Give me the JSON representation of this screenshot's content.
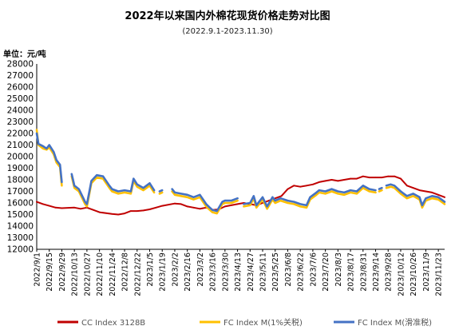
{
  "chart_data": {
    "type": "line",
    "title": "2022年以来国内外棉花现货价格走势对比图",
    "subtitle": "(2022.9.1-2023.11.30)",
    "unit_label": "单位：元/吨",
    "ylim": [
      12000,
      28000
    ],
    "yticks": [
      12000,
      13000,
      14000,
      15000,
      16000,
      17000,
      18000,
      19000,
      20000,
      21000,
      22000,
      23000,
      24000,
      25000,
      26000,
      27000,
      28000
    ],
    "xticks": [
      "2022/9/1",
      "2022/9/15",
      "2022/9/29",
      "2022/10/13",
      "2022/10/27",
      "2022/11/10",
      "2022/11/24",
      "2022/12/8",
      "2022/12/22",
      "2023/1/5",
      "2023/1/19",
      "2023/2/2",
      "2023/2/16",
      "2023/3/2",
      "2023/3/16",
      "2023/3/30",
      "2023/4/13",
      "2023/4/27",
      "2023/5/11",
      "2023/5/25",
      "2023/6/8",
      "2023/6/22",
      "2023/7/6",
      "2023/7/20",
      "2023/8/3",
      "2023/8/17",
      "2023/8/31",
      "2023/9/14",
      "2023/9/28",
      "2023/10/12",
      "2023/10/26",
      "2023/11/9",
      "2023/11/23"
    ],
    "grid": false,
    "legend_position": "bottom",
    "series": [
      {
        "name": "CC Index 3128B",
        "color": "#c00000",
        "points": [
          [
            "2022/9/1",
            16100
          ],
          [
            "2022/9/8",
            15900
          ],
          [
            "2022/9/15",
            15750
          ],
          [
            "2022/9/22",
            15600
          ],
          [
            "2022/9/29",
            15550
          ],
          [
            "2022/10/13",
            15600
          ],
          [
            "2022/10/20",
            15500
          ],
          [
            "2022/10/27",
            15600
          ],
          [
            "2022/11/3",
            15400
          ],
          [
            "2022/11/10",
            15200
          ],
          [
            "2022/11/24",
            15050
          ],
          [
            "2022/12/1",
            15000
          ],
          [
            "2022/12/8",
            15100
          ],
          [
            "2022/12/15",
            15300
          ],
          [
            "2022/12/22",
            15300
          ],
          [
            "2022/12/29",
            15350
          ],
          [
            "2023/1/5",
            15450
          ],
          [
            "2023/1/12",
            15600
          ],
          [
            "2023/1/19",
            15750
          ],
          [
            "2023/2/2",
            15950
          ],
          [
            "2023/2/9",
            15900
          ],
          [
            "2023/2/16",
            15700
          ],
          [
            "2023/2/23",
            15600
          ],
          [
            "2023/3/2",
            15500
          ],
          [
            "2023/3/9",
            15600
          ],
          [
            "2023/3/16",
            15400
          ],
          [
            "2023/3/23",
            15450
          ],
          [
            "2023/3/30",
            15700
          ],
          [
            "2023/4/6",
            15800
          ],
          [
            "2023/4/13",
            15900
          ],
          [
            "2023/4/20",
            16000
          ],
          [
            "2023/4/27",
            15900
          ],
          [
            "2023/5/4",
            15800
          ],
          [
            "2023/5/11",
            16000
          ],
          [
            "2023/5/18",
            16200
          ],
          [
            "2023/5/25",
            16400
          ],
          [
            "2023/6/1",
            16600
          ],
          [
            "2023/6/8",
            17200
          ],
          [
            "2023/6/15",
            17500
          ],
          [
            "2023/6/22",
            17400
          ],
          [
            "2023/6/29",
            17500
          ],
          [
            "2023/7/6",
            17600
          ],
          [
            "2023/7/13",
            17800
          ],
          [
            "2023/7/20",
            17900
          ],
          [
            "2023/7/27",
            18000
          ],
          [
            "2023/8/3",
            17900
          ],
          [
            "2023/8/10",
            18000
          ],
          [
            "2023/8/17",
            18100
          ],
          [
            "2023/8/24",
            18100
          ],
          [
            "2023/8/31",
            18300
          ],
          [
            "2023/9/7",
            18200
          ],
          [
            "2023/9/14",
            18200
          ],
          [
            "2023/9/21",
            18200
          ],
          [
            "2023/9/28",
            18300
          ],
          [
            "2023/10/5",
            18300
          ],
          [
            "2023/10/12",
            18100
          ],
          [
            "2023/10/19",
            17500
          ],
          [
            "2023/10/26",
            17300
          ],
          [
            "2023/11/2",
            17100
          ],
          [
            "2023/11/9",
            17000
          ],
          [
            "2023/11/16",
            16900
          ],
          [
            "2023/11/23",
            16700
          ],
          [
            "2023/11/30",
            16500
          ]
        ]
      },
      {
        "name": "FC Index M(1%关税)",
        "color": "#ffc000",
        "points": [
          [
            "2022/9/1",
            22300
          ],
          [
            "2022/9/3",
            21000
          ],
          [
            "2022/9/8",
            20700
          ],
          [
            "2022/9/12",
            20600
          ],
          [
            "2022/9/15",
            20800
          ],
          [
            "2022/9/20",
            20200
          ],
          [
            "2022/9/23",
            19500
          ],
          [
            "2022/9/27",
            19100
          ],
          [
            "2022/9/29",
            17500
          ],
          null,
          [
            "2022/10/10",
            18300
          ],
          [
            "2022/10/13",
            17300
          ],
          [
            "2022/10/18",
            17000
          ],
          [
            "2022/10/25",
            15900
          ],
          [
            "2022/10/27",
            15700
          ],
          [
            "2022/11/1",
            17700
          ],
          [
            "2022/11/7",
            18200
          ],
          [
            "2022/11/14",
            18100
          ],
          [
            "2022/11/21",
            17300
          ],
          [
            "2022/11/24",
            17000
          ],
          [
            "2022/12/1",
            16800
          ],
          [
            "2022/12/8",
            16900
          ],
          [
            "2022/12/15",
            16800
          ],
          [
            "2022/12/18",
            17900
          ],
          [
            "2022/12/22",
            17400
          ],
          [
            "2022/12/29",
            17100
          ],
          [
            "2023/1/5",
            17500
          ],
          [
            "2023/1/10",
            16900
          ],
          null,
          [
            "2023/1/16",
            16800
          ],
          [
            "2023/1/19",
            16900
          ],
          null,
          [
            "2023/1/30",
            17000
          ],
          [
            "2023/2/2",
            16700
          ],
          [
            "2023/2/9",
            16600
          ],
          [
            "2023/2/16",
            16500
          ],
          [
            "2023/2/23",
            16300
          ],
          [
            "2023/3/2",
            16500
          ],
          [
            "2023/3/9",
            15700
          ],
          [
            "2023/3/13",
            15400
          ],
          [
            "2023/3/16",
            15200
          ],
          [
            "2023/3/21",
            15100
          ],
          [
            "2023/3/27",
            15900
          ],
          [
            "2023/3/30",
            16000
          ],
          [
            "2023/4/6",
            16000
          ],
          [
            "2023/4/13",
            16200
          ],
          null,
          [
            "2023/4/20",
            15700
          ],
          [
            "2023/4/27",
            15800
          ],
          [
            "2023/5/1",
            16400
          ],
          [
            "2023/5/4",
            15600
          ],
          [
            "2023/5/11",
            16300
          ],
          [
            "2023/5/16",
            15500
          ],
          [
            "2023/5/22",
            16300
          ],
          [
            "2023/5/25",
            16000
          ],
          [
            "2023/5/31",
            16200
          ],
          [
            "2023/6/8",
            16000
          ],
          [
            "2023/6/15",
            15900
          ],
          [
            "2023/6/22",
            15700
          ],
          [
            "2023/6/29",
            15600
          ],
          [
            "2023/7/3",
            16300
          ],
          [
            "2023/7/10",
            16700
          ],
          [
            "2023/7/13",
            16900
          ],
          [
            "2023/7/20",
            16800
          ],
          [
            "2023/7/27",
            17000
          ],
          [
            "2023/8/3",
            16800
          ],
          [
            "2023/8/10",
            16700
          ],
          [
            "2023/8/17",
            16900
          ],
          [
            "2023/8/24",
            16800
          ],
          [
            "2023/8/31",
            17300
          ],
          [
            "2023/9/7",
            17000
          ],
          [
            "2023/9/14",
            16900
          ],
          null,
          [
            "2023/9/18",
            17000
          ],
          [
            "2023/9/21",
            17100
          ],
          null,
          [
            "2023/9/26",
            17300
          ],
          [
            "2023/10/1",
            17400
          ],
          [
            "2023/10/5",
            17300
          ],
          [
            "2023/10/12",
            16800
          ],
          [
            "2023/10/19",
            16400
          ],
          [
            "2023/10/26",
            16600
          ],
          [
            "2023/11/2",
            16300
          ],
          [
            "2023/11/5",
            15600
          ],
          [
            "2023/11/9",
            16200
          ],
          [
            "2023/11/16",
            16400
          ],
          [
            "2023/11/23",
            16300
          ],
          [
            "2023/11/30",
            15900
          ]
        ]
      },
      {
        "name": "FC Index M(滑准税)",
        "color": "#4472c4",
        "points": [
          [
            "2022/9/1",
            22000
          ],
          [
            "2022/9/3",
            21100
          ],
          [
            "2022/9/8",
            20900
          ],
          [
            "2022/9/12",
            20700
          ],
          [
            "2022/9/15",
            21000
          ],
          [
            "2022/9/20",
            20400
          ],
          [
            "2022/9/23",
            19700
          ],
          [
            "2022/9/27",
            19300
          ],
          [
            "2022/9/29",
            17800
          ],
          null,
          [
            "2022/10/10",
            18500
          ],
          [
            "2022/10/13",
            17500
          ],
          [
            "2022/10/18",
            17200
          ],
          [
            "2022/10/25",
            16100
          ],
          [
            "2022/10/27",
            15900
          ],
          [
            "2022/11/1",
            17900
          ],
          [
            "2022/11/7",
            18400
          ],
          [
            "2022/11/14",
            18300
          ],
          [
            "2022/11/21",
            17500
          ],
          [
            "2022/11/24",
            17200
          ],
          [
            "2022/12/1",
            17000
          ],
          [
            "2022/12/8",
            17100
          ],
          [
            "2022/12/15",
            17000
          ],
          [
            "2022/12/18",
            18100
          ],
          [
            "2022/12/22",
            17600
          ],
          [
            "2022/12/29",
            17300
          ],
          [
            "2023/1/5",
            17700
          ],
          [
            "2023/1/10",
            17100
          ],
          null,
          [
            "2023/1/16",
            17000
          ],
          [
            "2023/1/19",
            17100
          ],
          null,
          [
            "2023/1/30",
            17200
          ],
          [
            "2023/2/2",
            16900
          ],
          [
            "2023/2/9",
            16800
          ],
          [
            "2023/2/16",
            16700
          ],
          [
            "2023/2/23",
            16500
          ],
          [
            "2023/3/2",
            16700
          ],
          [
            "2023/3/9",
            15900
          ],
          [
            "2023/3/13",
            15600
          ],
          [
            "2023/3/16",
            15400
          ],
          [
            "2023/3/21",
            15300
          ],
          [
            "2023/3/27",
            16100
          ],
          [
            "2023/3/30",
            16200
          ],
          [
            "2023/4/6",
            16200
          ],
          [
            "2023/4/13",
            16400
          ],
          null,
          [
            "2023/4/20",
            15900
          ],
          [
            "2023/4/27",
            16000
          ],
          [
            "2023/5/1",
            16600
          ],
          [
            "2023/5/4",
            15800
          ],
          [
            "2023/5/11",
            16500
          ],
          [
            "2023/5/16",
            15700
          ],
          [
            "2023/5/22",
            16500
          ],
          [
            "2023/5/25",
            16200
          ],
          [
            "2023/5/31",
            16400
          ],
          [
            "2023/6/8",
            16200
          ],
          [
            "2023/6/15",
            16100
          ],
          [
            "2023/6/22",
            15900
          ],
          [
            "2023/6/29",
            15800
          ],
          [
            "2023/7/3",
            16500
          ],
          [
            "2023/7/10",
            16900
          ],
          [
            "2023/7/13",
            17100
          ],
          [
            "2023/7/20",
            17000
          ],
          [
            "2023/7/27",
            17200
          ],
          [
            "2023/8/3",
            17000
          ],
          [
            "2023/8/10",
            16900
          ],
          [
            "2023/8/17",
            17100
          ],
          [
            "2023/8/24",
            17000
          ],
          [
            "2023/8/31",
            17500
          ],
          [
            "2023/9/7",
            17200
          ],
          [
            "2023/9/14",
            17100
          ],
          null,
          [
            "2023/9/18",
            17200
          ],
          [
            "2023/9/21",
            17300
          ],
          null,
          [
            "2023/9/26",
            17500
          ],
          [
            "2023/10/1",
            17600
          ],
          [
            "2023/10/5",
            17500
          ],
          [
            "2023/10/12",
            17000
          ],
          [
            "2023/10/19",
            16600
          ],
          [
            "2023/10/26",
            16800
          ],
          [
            "2023/11/2",
            16500
          ],
          [
            "2023/11/5",
            15800
          ],
          [
            "2023/11/9",
            16400
          ],
          [
            "2023/11/16",
            16600
          ],
          [
            "2023/11/23",
            16500
          ],
          [
            "2023/11/30",
            16100
          ]
        ]
      }
    ]
  }
}
